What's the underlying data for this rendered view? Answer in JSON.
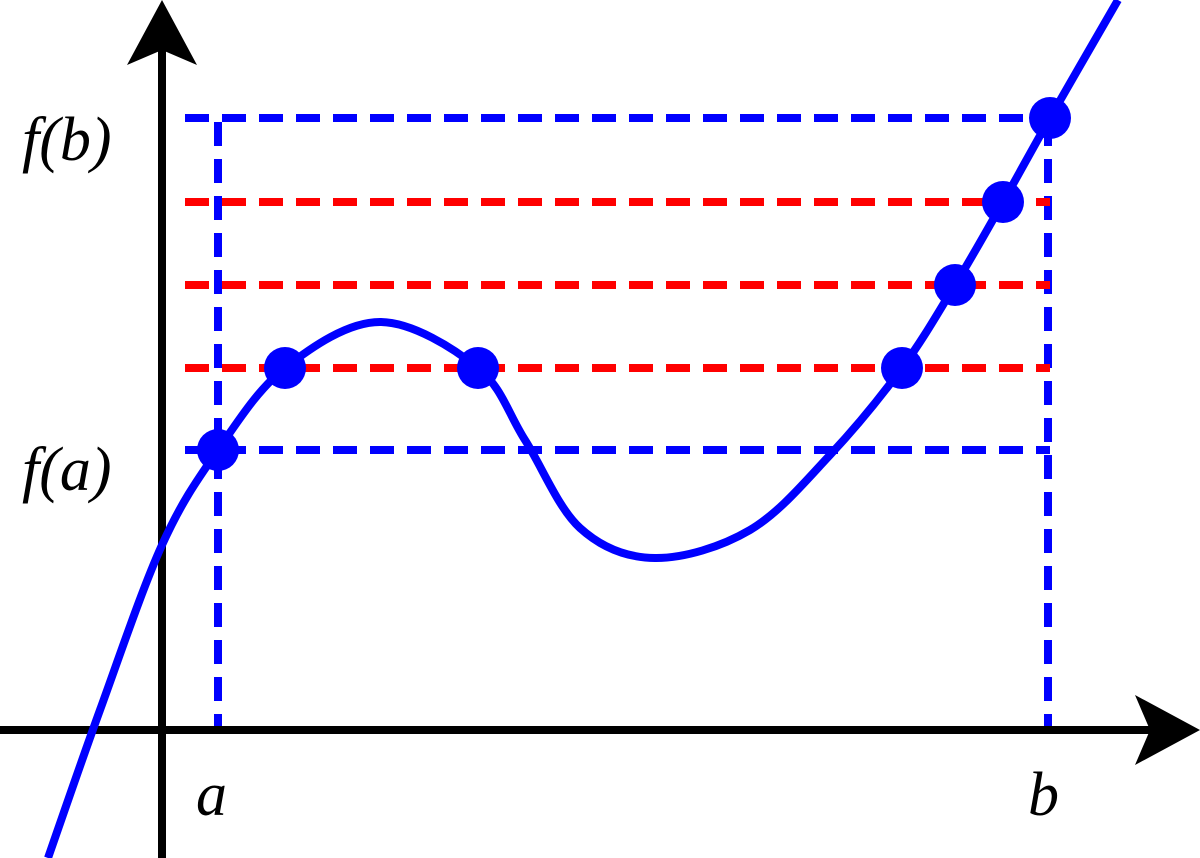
{
  "labels": {
    "fb": "f(b)",
    "fa": "f(a)",
    "a": "a",
    "b": "b"
  }
}
